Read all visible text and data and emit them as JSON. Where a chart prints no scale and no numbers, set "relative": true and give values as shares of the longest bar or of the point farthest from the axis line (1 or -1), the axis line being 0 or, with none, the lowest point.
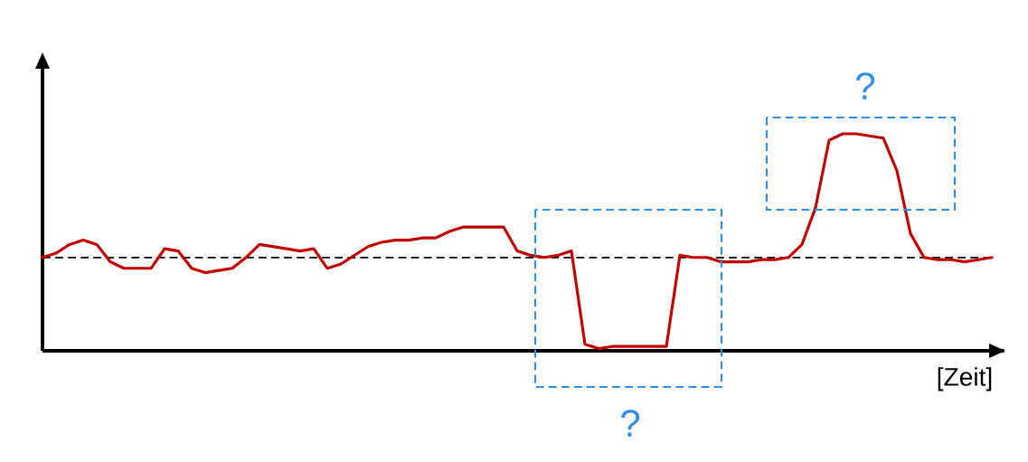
{
  "chart_data": {
    "type": "line",
    "relative": true,
    "xlabel": "[Zeit]",
    "annotations": [
      "?",
      "?"
    ],
    "categories": [
      null,
      null,
      null,
      null,
      null,
      null,
      null,
      null,
      null,
      null,
      null,
      null,
      null,
      null,
      null,
      null,
      null,
      null,
      null,
      null,
      null,
      null,
      null,
      null,
      null,
      null,
      null,
      null,
      null,
      null,
      null,
      null,
      null,
      null,
      null,
      null,
      null,
      null,
      null,
      null,
      null,
      null,
      null,
      null,
      null,
      null,
      null,
      null,
      null,
      null,
      null,
      null,
      null,
      null,
      null,
      null,
      null,
      null,
      null,
      null,
      null,
      null,
      null,
      null,
      null,
      null,
      null,
      null,
      null,
      null,
      null
    ],
    "series": [
      {
        "color": "#c00000",
        "values": [
          0.43,
          0.45,
          0.49,
          0.51,
          0.49,
          0.41,
          0.38,
          0.38,
          0.38,
          0.47,
          0.46,
          0.38,
          0.36,
          0.37,
          0.38,
          0.43,
          0.49,
          0.48,
          0.47,
          0.46,
          0.47,
          0.38,
          0.4,
          0.44,
          0.48,
          0.5,
          0.51,
          0.51,
          0.52,
          0.52,
          0.55,
          0.57,
          0.57,
          0.57,
          0.57,
          0.46,
          0.44,
          0.43,
          0.44,
          0.46,
          0.03,
          0.01,
          0.02,
          0.02,
          0.02,
          0.02,
          0.02,
          0.44,
          0.43,
          0.43,
          0.41,
          0.41,
          0.41,
          0.42,
          0.42,
          0.43,
          0.49,
          0.66,
          0.97,
          1,
          1,
          0.99,
          0.98,
          0.83,
          0.54,
          0.43,
          0.42,
          0.42,
          0.41,
          0.42,
          0.43
        ]
      }
    ],
    "ref_lines": [
      {
        "axis": "y",
        "value": 0.43,
        "color": "#000000",
        "line_style": "dashed"
      }
    ]
  }
}
